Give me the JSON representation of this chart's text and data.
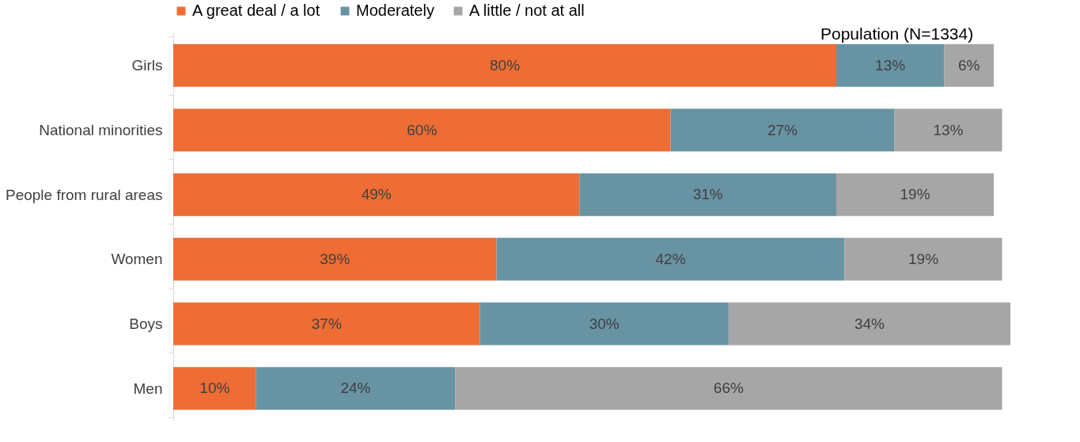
{
  "chart_data": {
    "type": "bar",
    "orientation": "horizontal",
    "stacked": true,
    "legend": "top",
    "categories": [
      "Girls",
      "National minorities",
      "People from rural areas",
      "Women",
      "Boys",
      "Men"
    ],
    "series": [
      {
        "name": "A great deal / a lot",
        "color": "#ed6d35",
        "values": [
          80,
          60,
          49,
          39,
          37,
          10
        ],
        "value_labels": [
          "80%",
          "60%",
          "49%",
          "39%",
          "37%",
          "10%"
        ]
      },
      {
        "name": "Moderately",
        "color": "#6893a3",
        "values": [
          13,
          27,
          31,
          42,
          30,
          24
        ],
        "value_labels": [
          "13%",
          "27%",
          "31%",
          "42%",
          "30%",
          "24%"
        ]
      },
      {
        "name": "A little / not at all",
        "color": "#a6a6a6",
        "values": [
          6,
          13,
          19,
          19,
          34,
          66
        ],
        "value_labels": [
          "6%",
          "13%",
          "19%",
          "19%",
          "34%",
          "66%"
        ]
      }
    ],
    "annotations": [
      "Population (N=1334)"
    ]
  }
}
